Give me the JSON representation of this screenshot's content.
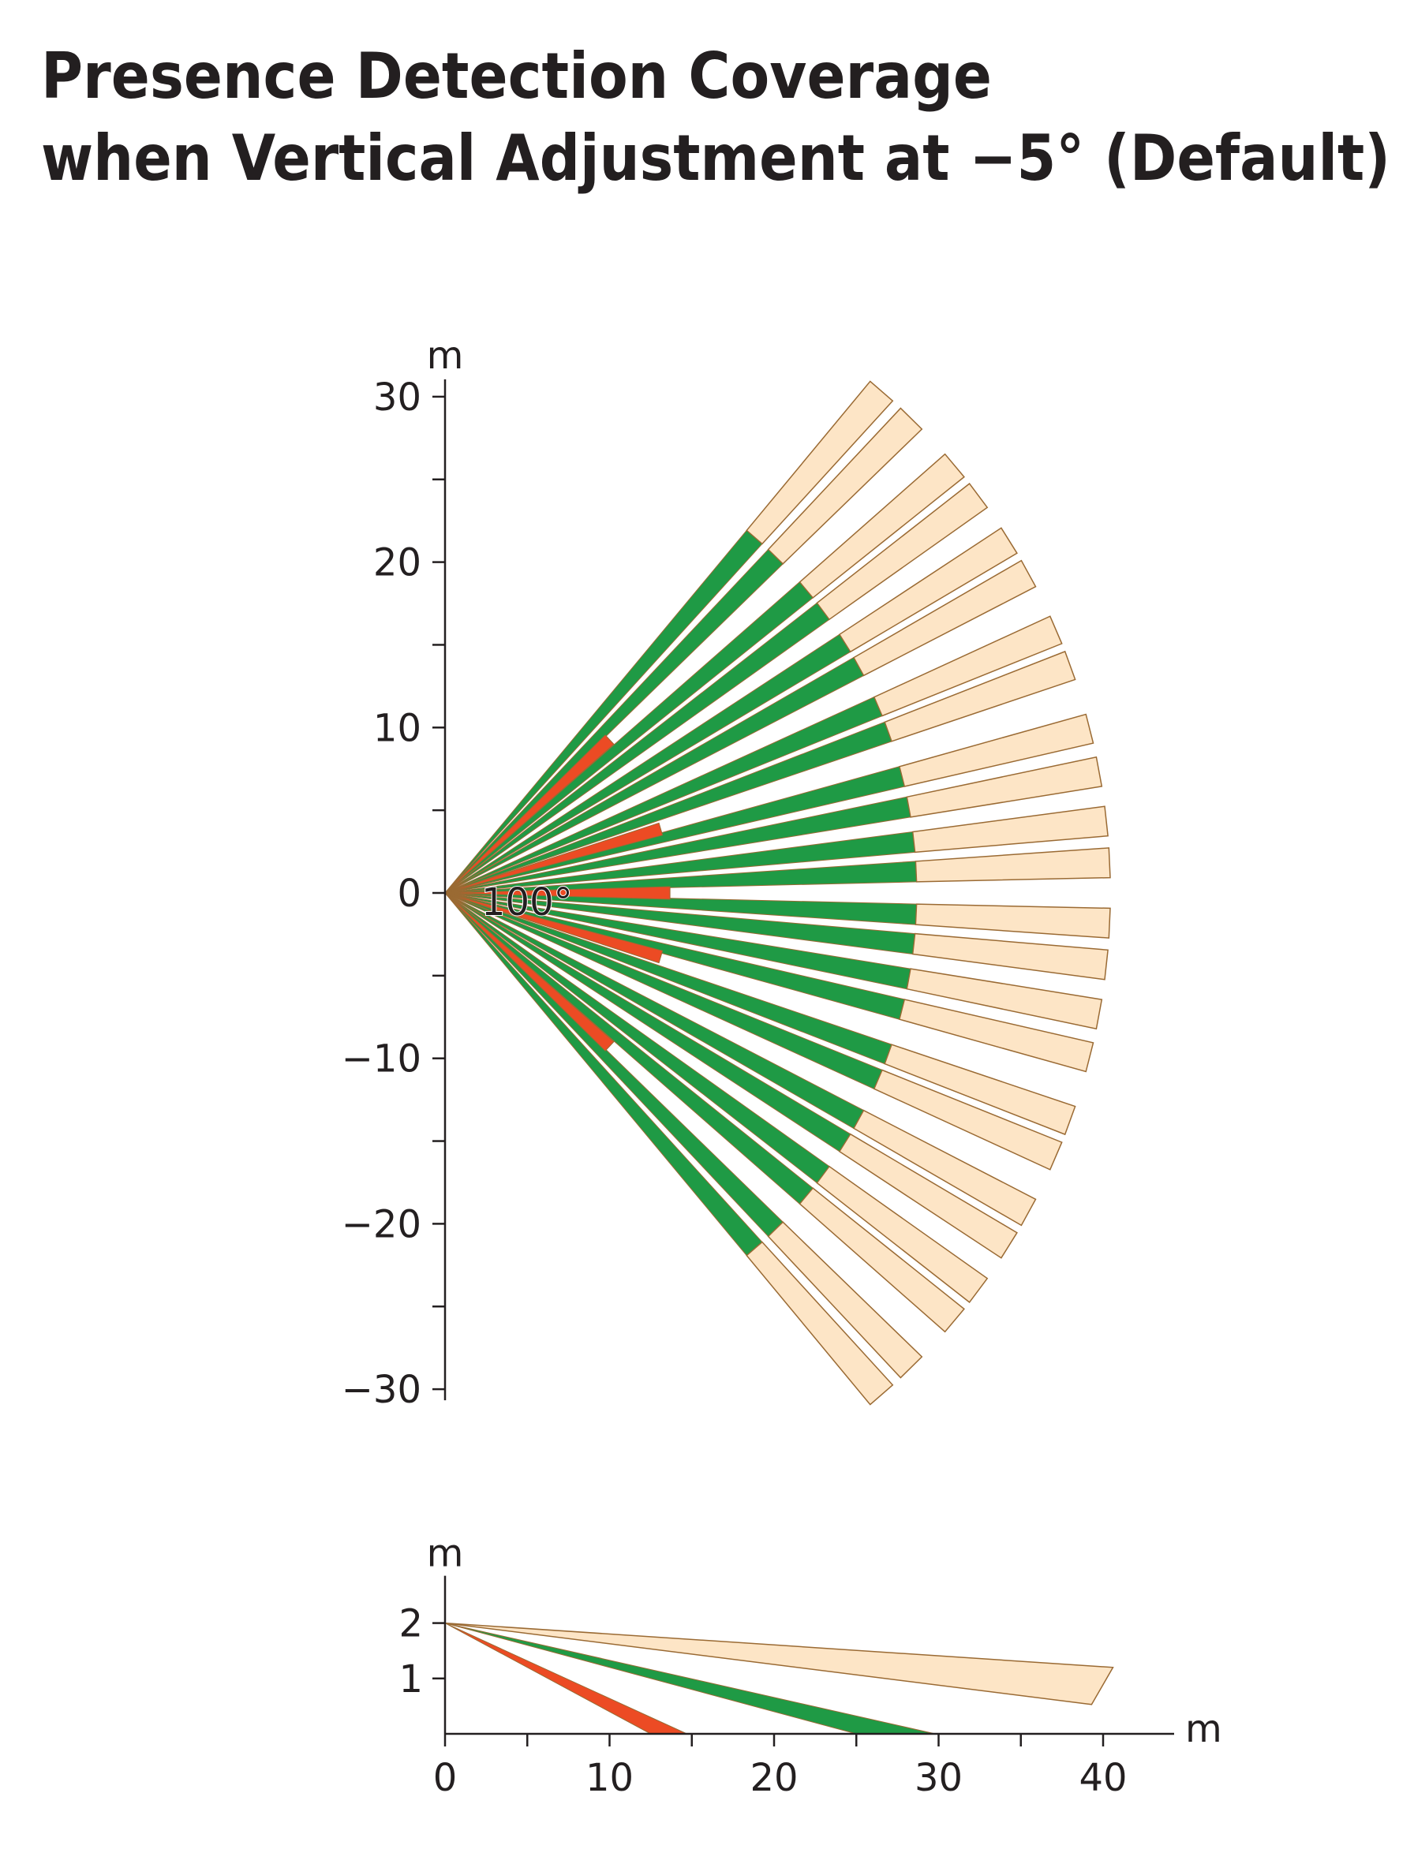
{
  "title": [
    "Presence Detection Coverage",
    "when Vertical Adjustment at −5° (Default)"
  ],
  "top_view": {
    "unit": "m",
    "angle_label": "100°",
    "yticks": [
      {
        "value": 30,
        "label": "30"
      },
      {
        "value": 20,
        "label": "20"
      },
      {
        "value": 10,
        "label": "10"
      },
      {
        "value": 0,
        "label": "0"
      },
      {
        "value": -10,
        "label": "−10"
      },
      {
        "value": -20,
        "label": "−20"
      },
      {
        "value": -30,
        "label": "−30"
      }
    ]
  },
  "side_view": {
    "x_unit": "m",
    "y_unit": "m",
    "xticks": [
      0,
      10,
      20,
      30,
      40
    ],
    "yticks": [
      1,
      2
    ]
  }
}
